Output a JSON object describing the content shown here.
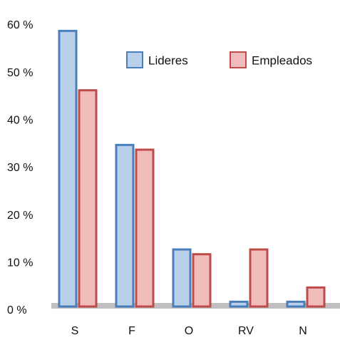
{
  "chart_data": {
    "type": "bar",
    "categories": [
      "S",
      "F",
      "O",
      "RV",
      "N"
    ],
    "series": [
      {
        "name": "Lideres",
        "color": "#4a7ebb",
        "fill": "#b9d0ea",
        "values": [
          58,
          34,
          12,
          1,
          1
        ]
      },
      {
        "name": "Empleados",
        "color": "#be4b48",
        "fill": "#f0bcbb",
        "values": [
          45.5,
          33,
          11,
          12,
          4
        ]
      }
    ],
    "ylim": [
      0,
      60
    ],
    "yticks": [
      {
        "value": 0,
        "label": "0 %"
      },
      {
        "value": 10,
        "label": "10 %"
      },
      {
        "value": 20,
        "label": "20 %"
      },
      {
        "value": 30,
        "label": "30 %"
      },
      {
        "value": 40,
        "label": "40 %"
      },
      {
        "value": 50,
        "label": "50 %"
      },
      {
        "value": 60,
        "label": "60 %"
      }
    ],
    "grid": false,
    "legend": "top"
  }
}
